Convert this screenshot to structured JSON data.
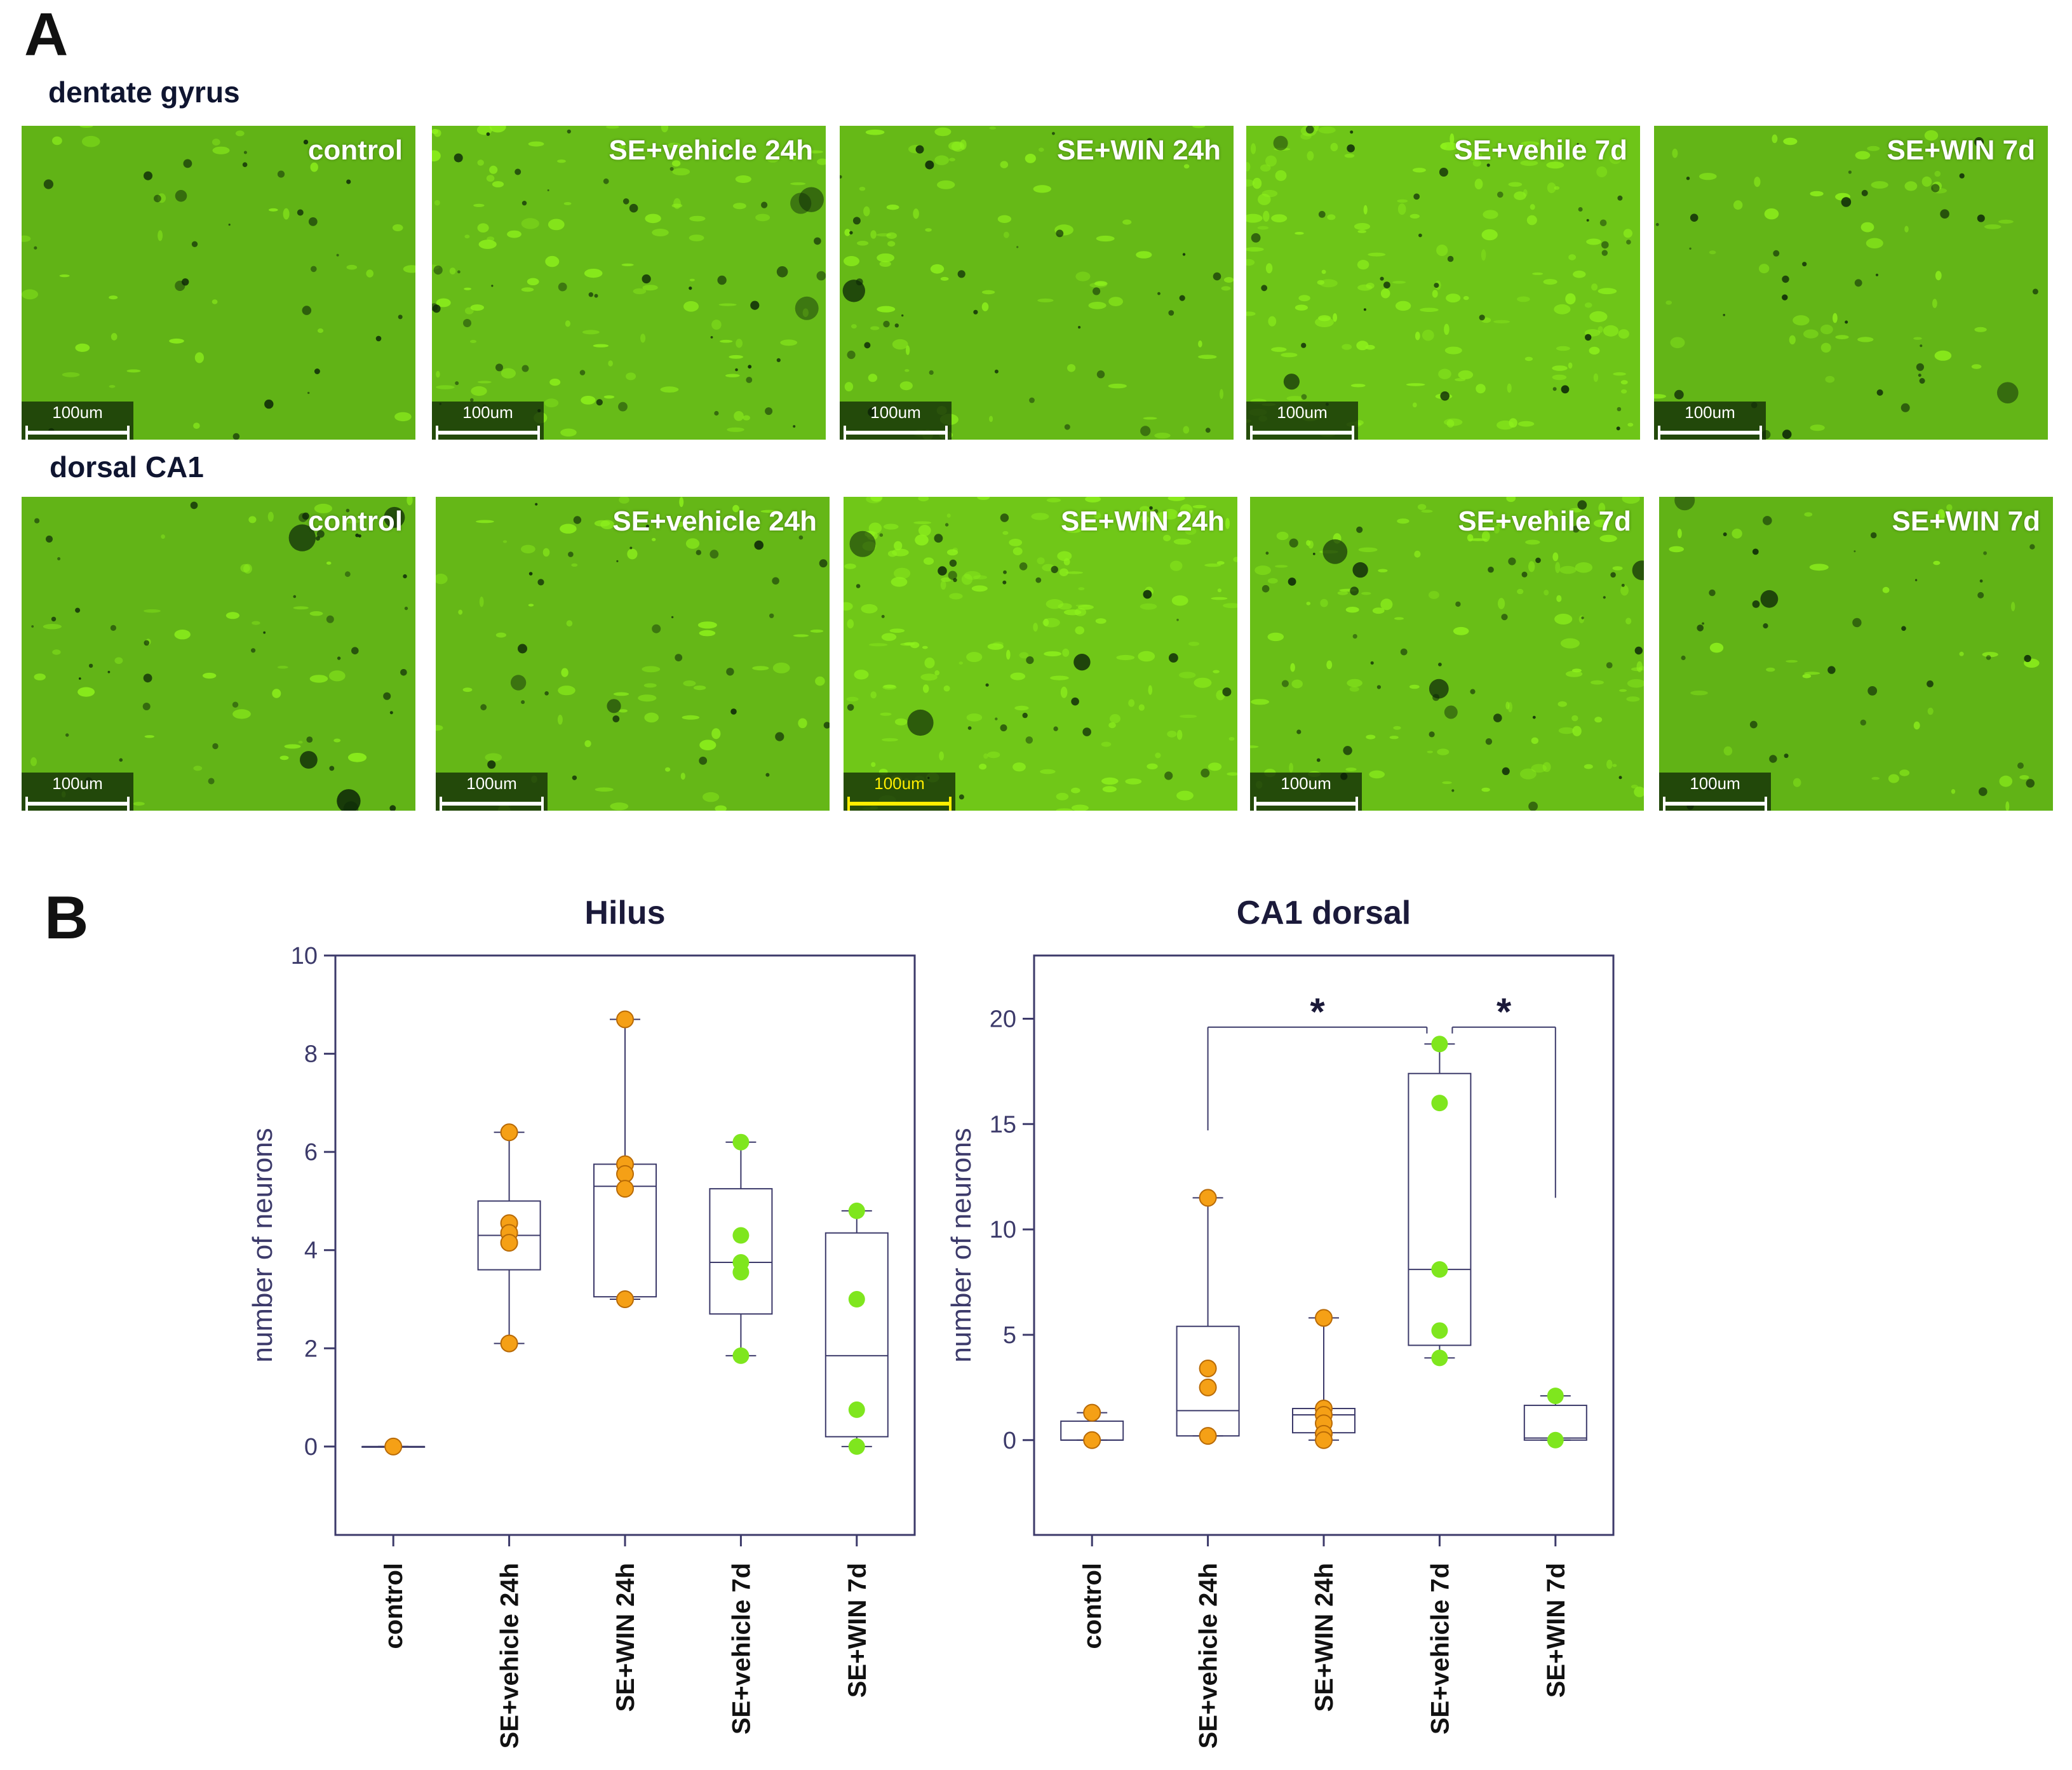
{
  "panel_a": {
    "letter": "A",
    "rows": [
      {
        "label": "dentate gyrus",
        "images": [
          {
            "condition": "control",
            "scale": "100um",
            "bright": 0.0
          },
          {
            "condition": "SE+vehicle 24h",
            "scale": "100um",
            "bright": 0.4
          },
          {
            "condition": "SE+WIN 24h",
            "scale": "100um",
            "bright": 0.3
          },
          {
            "condition": "SE+vehile 7d",
            "scale": "100um",
            "bright": 0.8
          },
          {
            "condition": "SE+WIN 7d",
            "scale": "100um",
            "bright": 0.1
          }
        ]
      },
      {
        "label": "dorsal CA1",
        "images": [
          {
            "condition": "control",
            "scale": "100um",
            "bright": 0.05
          },
          {
            "condition": "SE+vehicle 24h",
            "scale": "100um",
            "bright": 0.2
          },
          {
            "condition": "SE+WIN 24h",
            "scale": "100um",
            "bright": 0.9
          },
          {
            "condition": "SE+vehile 7d",
            "scale": "100um",
            "bright": 0.5
          },
          {
            "condition": "SE+WIN 7d",
            "scale": "100um",
            "bright": 0.0
          }
        ]
      }
    ],
    "colors": {
      "tissue": "#5aa816",
      "bright": "#8ef21c",
      "dark": "#0e2a08",
      "scale_bar": "#ffffff",
      "scale_bar_highlight": "#ffee00"
    }
  },
  "panel_b": {
    "letter": "B",
    "colors": {
      "orange": "#f5a016",
      "green": "#7fe61e",
      "axis": "#3c3a6a"
    },
    "chart_data": [
      {
        "type": "box",
        "title": "Hilus",
        "ylabel": "number of neurons",
        "xlabel": "",
        "categories": [
          "control",
          "SE+vehicle 24h",
          "SE+WIN 24h",
          "SE+vehicle 7d",
          "SE+WIN 7d"
        ],
        "ylim": [
          -1.8,
          10
        ],
        "yticks": [
          0,
          2,
          4,
          6,
          8,
          10
        ],
        "grid": false,
        "boxes": [
          {
            "category": "control",
            "min": 0,
            "q1": 0,
            "median": 0,
            "q3": 0,
            "max": 0,
            "points": [
              0
            ],
            "color": "orange"
          },
          {
            "category": "SE+vehicle 24h",
            "min": 2.1,
            "q1": 3.6,
            "median": 4.3,
            "q3": 5.0,
            "max": 6.4,
            "points": [
              6.4,
              4.55,
              4.35,
              4.15,
              2.1
            ],
            "color": "orange"
          },
          {
            "category": "SE+WIN 24h",
            "min": 3.0,
            "q1": 3.05,
            "median": 5.3,
            "q3": 5.75,
            "max": 8.7,
            "points": [
              8.7,
              5.75,
              5.55,
              5.25,
              3.0
            ],
            "color": "orange"
          },
          {
            "category": "SE+vehicle 7d",
            "min": 1.85,
            "q1": 2.7,
            "median": 3.75,
            "q3": 5.25,
            "max": 6.2,
            "points": [
              6.2,
              4.3,
              3.75,
              3.55,
              1.85
            ],
            "color": "green"
          },
          {
            "category": "SE+WIN 7d",
            "min": 0,
            "q1": 0.2,
            "median": 1.85,
            "q3": 4.35,
            "max": 4.8,
            "points": [
              4.8,
              3.0,
              0.75,
              0
            ],
            "color": "green"
          }
        ],
        "significance": []
      },
      {
        "type": "box",
        "title": "CA1 dorsal",
        "ylabel": "number of neurons",
        "xlabel": "",
        "categories": [
          "control",
          "SE+vehicle 24h",
          "SE+WIN 24h",
          "SE+vehicle 7d",
          "SE+WIN 7d"
        ],
        "ylim": [
          -4.5,
          23
        ],
        "yticks": [
          0,
          5,
          10,
          15,
          20
        ],
        "grid": false,
        "boxes": [
          {
            "category": "control",
            "min": 0,
            "q1": 0,
            "median": 0,
            "q3": 0.9,
            "max": 1.3,
            "points": [
              1.3,
              0
            ],
            "color": "orange"
          },
          {
            "category": "SE+vehicle 24h",
            "min": 0.2,
            "q1": 0.2,
            "median": 1.4,
            "q3": 5.4,
            "max": 11.5,
            "points": [
              11.5,
              3.4,
              2.5,
              0.2
            ],
            "color": "orange"
          },
          {
            "category": "SE+WIN 24h",
            "min": 0,
            "q1": 0.35,
            "median": 1.2,
            "q3": 1.5,
            "max": 5.8,
            "points": [
              5.8,
              1.5,
              1.2,
              0.8,
              0.3,
              0
            ],
            "color": "orange"
          },
          {
            "category": "SE+vehicle 7d",
            "min": 3.9,
            "q1": 4.5,
            "median": 8.1,
            "q3": 17.4,
            "max": 18.8,
            "points": [
              18.8,
              16.0,
              8.1,
              5.2,
              3.9
            ],
            "color": "green"
          },
          {
            "category": "SE+WIN 7d",
            "min": 0,
            "q1": 0,
            "median": 0.1,
            "q3": 1.65,
            "max": 2.1,
            "points": [
              2.1,
              0
            ],
            "color": "green"
          }
        ],
        "significance": [
          {
            "from": "SE+vehicle 24h",
            "to": "SE+vehicle 7d",
            "level": 19.6,
            "left_drop_to": 14.7,
            "right_drop_to": 19.3,
            "label": "*"
          },
          {
            "from": "SE+vehicle 7d",
            "to": "SE+WIN 7d",
            "level": 19.6,
            "left_drop_to": 19.3,
            "right_drop_to": 11.5,
            "label": "*"
          }
        ]
      }
    ]
  }
}
